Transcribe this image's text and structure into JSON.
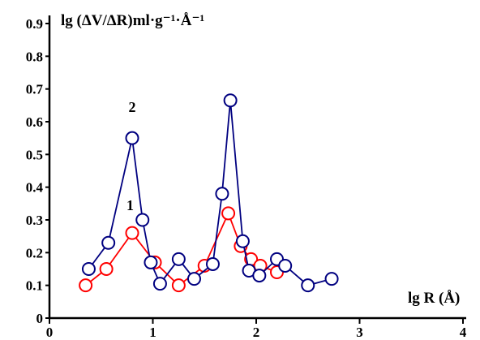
{
  "chart_data": {
    "type": "line",
    "title": "",
    "xlabel": "lg R (Å)",
    "ylabel": "lg (ΔV/ΔR)ml·g⁻¹·Å⁻¹",
    "xlim": [
      0,
      4
    ],
    "ylim": [
      0,
      0.9
    ],
    "x_ticks": [
      "0",
      "1",
      "2",
      "3",
      "4"
    ],
    "y_ticks": [
      "0",
      "0.1",
      "0.2",
      "0.3",
      "0.4",
      "0.5",
      "0.6",
      "0.7",
      "0.8",
      "0.9"
    ],
    "grid": false,
    "legend": "none",
    "annotations": [
      {
        "text": "1",
        "x": 0.78,
        "y": 0.33
      },
      {
        "text": "2",
        "x": 0.8,
        "y": 0.63
      }
    ],
    "series": [
      {
        "label_text": "1",
        "color": "#ff0000",
        "x": [
          0.35,
          0.55,
          0.8,
          1.02,
          1.25,
          1.5,
          1.73,
          1.85,
          1.95,
          2.04,
          2.2
        ],
        "y": [
          0.1,
          0.15,
          0.26,
          0.17,
          0.1,
          0.16,
          0.32,
          0.22,
          0.18,
          0.16,
          0.14
        ]
      },
      {
        "label_text": "2",
        "color": "#000080",
        "x": [
          0.38,
          0.57,
          0.8,
          0.9,
          0.98,
          1.07,
          1.25,
          1.4,
          1.58,
          1.67,
          1.75,
          1.87,
          1.93,
          2.03,
          2.2,
          2.28,
          2.5,
          2.73
        ],
        "y": [
          0.15,
          0.23,
          0.55,
          0.3,
          0.17,
          0.105,
          0.18,
          0.12,
          0.165,
          0.38,
          0.665,
          0.235,
          0.145,
          0.13,
          0.18,
          0.16,
          0.1,
          0.12
        ]
      }
    ]
  }
}
